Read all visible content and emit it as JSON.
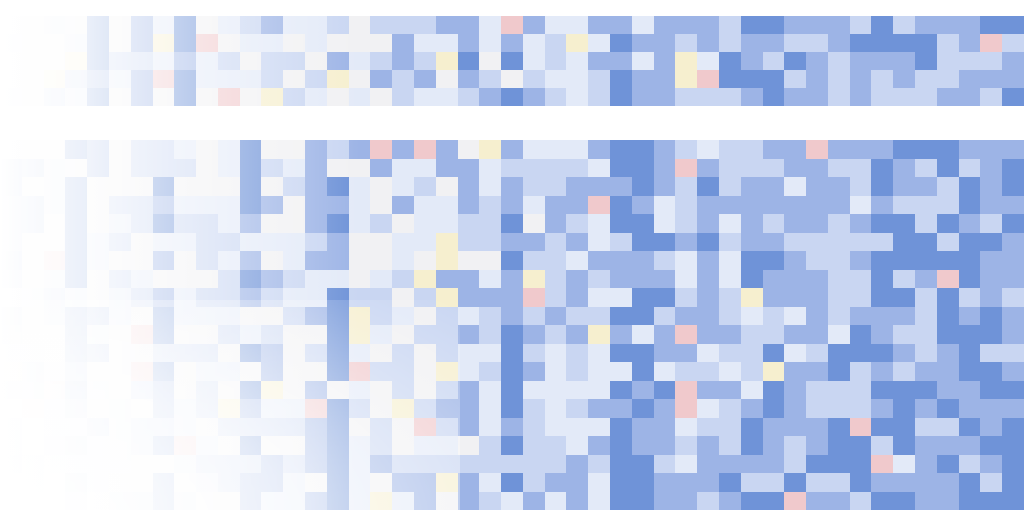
{
  "palette": {
    "background": "#ffffff",
    "blue_strong": "#6f93d8",
    "blue_mid": "#9db4e6",
    "blue_light": "#c9d6f2",
    "blue_pale": "#e3eaf8",
    "neutral": "#f1f1f3",
    "red_light": "#f0c9cc",
    "yellow_light": "#f6efcf"
  },
  "top_band": {
    "columns": 47,
    "rows": 5
  },
  "bottom_band": {
    "columns": 47,
    "rows": 20
  }
}
